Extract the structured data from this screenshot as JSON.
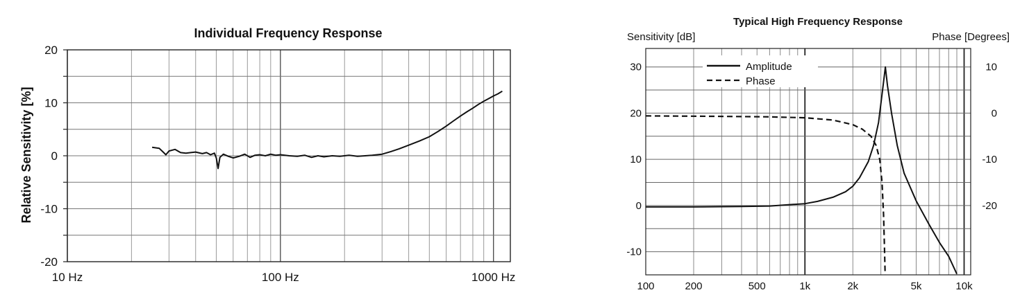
{
  "chart_data": [
    {
      "type": "line",
      "title": "Individual Frequency Response",
      "xlabel": "",
      "ylabel": "Relative Sensitivity  [%]",
      "x_scale": "log",
      "xlim": [
        10,
        1200
      ],
      "ylim": [
        -20,
        20
      ],
      "x_ticks": [
        {
          "value": 10,
          "label": "10 Hz"
        },
        {
          "value": 100,
          "label": "100 Hz"
        },
        {
          "value": 1000,
          "label": "1000 Hz"
        }
      ],
      "y_ticks": [
        {
          "value": 20,
          "label": "20"
        },
        {
          "value": 10,
          "label": "10"
        },
        {
          "value": 0,
          "label": "0"
        },
        {
          "value": -10,
          "label": "-10"
        },
        {
          "value": -20,
          "label": "-20"
        }
      ],
      "grid": true,
      "series": [
        {
          "color": "#111111",
          "dash": "solid",
          "x": [
            25,
            27,
            28,
            29,
            30,
            32,
            34,
            36,
            38,
            40,
            43,
            45,
            47,
            49,
            50,
            51,
            52,
            54,
            57,
            60,
            64,
            68,
            72,
            76,
            80,
            85,
            90,
            95,
            100,
            110,
            120,
            130,
            140,
            150,
            160,
            175,
            190,
            210,
            230,
            250,
            270,
            300,
            330,
            360,
            400,
            450,
            500,
            550,
            600,
            650,
            700,
            750,
            800,
            850,
            900,
            950,
            1000,
            1050,
            1100
          ],
          "y": [
            1.6,
            1.4,
            0.8,
            0.2,
            0.9,
            1.2,
            0.6,
            0.5,
            0.6,
            0.7,
            0.4,
            0.6,
            0.2,
            0.5,
            -0.4,
            -2.4,
            -0.3,
            0.3,
            -0.1,
            -0.4,
            -0.1,
            0.3,
            -0.3,
            0.1,
            0.2,
            0.0,
            0.3,
            0.1,
            0.2,
            0.0,
            -0.1,
            0.1,
            -0.3,
            0.0,
            -0.2,
            0.0,
            -0.1,
            0.1,
            -0.1,
            0.0,
            0.1,
            0.3,
            0.8,
            1.3,
            2.0,
            2.8,
            3.6,
            4.6,
            5.6,
            6.6,
            7.5,
            8.3,
            9.0,
            9.7,
            10.3,
            10.8,
            11.3,
            11.7,
            12.2
          ]
        }
      ]
    },
    {
      "type": "line",
      "title": "Typical High Frequency Response",
      "ylabel": "Sensitivity [dB]",
      "y2label": "Phase [Degrees]",
      "x_scale": "log",
      "xlim": [
        100,
        11000
      ],
      "ylim": [
        -15,
        34
      ],
      "y2lim": [
        -35,
        14
      ],
      "x_ticks": [
        {
          "value": 100,
          "label": "100"
        },
        {
          "value": 200,
          "label": "200"
        },
        {
          "value": 500,
          "label": "500"
        },
        {
          "value": 1000,
          "label": "1k"
        },
        {
          "value": 2000,
          "label": "2k"
        },
        {
          "value": 5000,
          "label": "5k"
        },
        {
          "value": 10000,
          "label": "10k"
        }
      ],
      "y_ticks": [
        {
          "value": 30,
          "label": "30"
        },
        {
          "value": 20,
          "label": "20"
        },
        {
          "value": 10,
          "label": "10"
        },
        {
          "value": 0,
          "label": "0"
        },
        {
          "value": -10,
          "label": "-10"
        }
      ],
      "y2_ticks": [
        {
          "value": 10,
          "label": "10"
        },
        {
          "value": 0,
          "label": "0"
        },
        {
          "value": -10,
          "label": "-10"
        },
        {
          "value": -20,
          "label": "-20"
        }
      ],
      "grid": true,
      "legend": {
        "position": "top-left"
      },
      "series": [
        {
          "name": "Amplitude",
          "axis": "left",
          "color": "#111111",
          "dash": "solid",
          "x": [
            100,
            200,
            400,
            600,
            800,
            1000,
            1200,
            1500,
            1800,
            2000,
            2200,
            2500,
            2700,
            2900,
            3000,
            3100,
            3200,
            3300,
            3500,
            3800,
            4200,
            5000,
            6000,
            7000,
            8000,
            9000
          ],
          "y": [
            -0.3,
            -0.3,
            -0.2,
            -0.1,
            0.2,
            0.4,
            0.9,
            1.8,
            3.0,
            4.2,
            6.0,
            9.5,
            13.0,
            18.0,
            22.0,
            26.0,
            30.0,
            26.0,
            20.0,
            13.0,
            7.0,
            1.0,
            -4.0,
            -8.0,
            -11.0,
            -14.8
          ]
        },
        {
          "name": "Phase",
          "axis": "right",
          "color": "#111111",
          "dash": "dashed",
          "x": [
            100,
            300,
            600,
            1000,
            1500,
            2000,
            2300,
            2600,
            2800,
            2950,
            3050,
            3120,
            3160,
            3190
          ],
          "y": [
            -0.6,
            -0.7,
            -0.8,
            -1.0,
            -1.5,
            -2.5,
            -3.5,
            -5.0,
            -7.0,
            -10.0,
            -15.0,
            -22.0,
            -29.0,
            -35.0
          ]
        }
      ]
    }
  ]
}
